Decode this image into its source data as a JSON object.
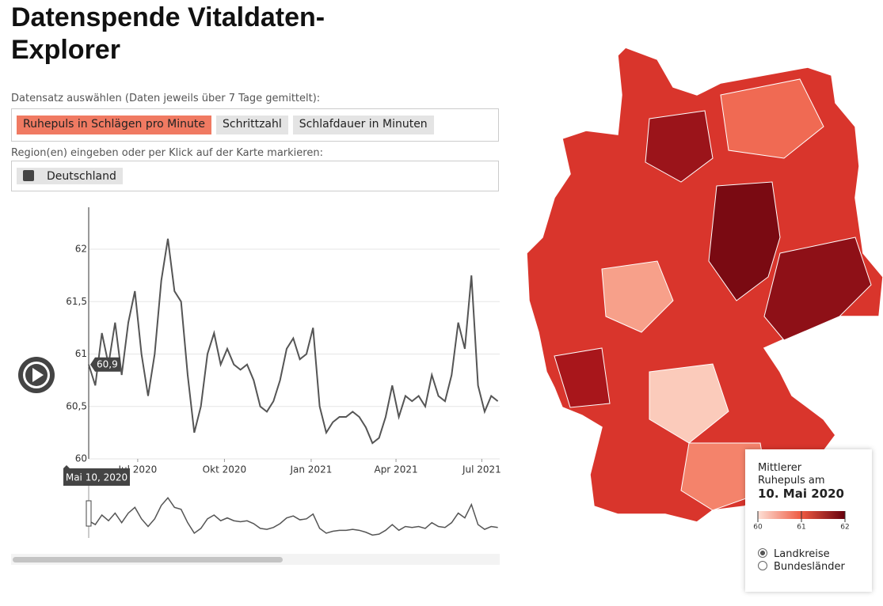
{
  "header": {
    "title": "Datenspende Vitaldaten-Explorer"
  },
  "dataset_picker": {
    "label": "Datensatz auswählen (Daten jeweils über 7 Tage gemittelt):",
    "options": [
      "Ruhepuls in Schlägen pro Minute",
      "Schrittzahl",
      "Schlafdauer in Minuten"
    ]
  },
  "region_picker": {
    "label": "Region(en) eingeben oder per Klick auf der Karte markieren:",
    "regions": [
      "Deutschland"
    ]
  },
  "chart_data": {
    "type": "line",
    "x": [
      "2020-05-10",
      "2020-05-17",
      "2020-05-24",
      "2020-05-31",
      "2020-06-07",
      "2020-06-14",
      "2020-06-21",
      "2020-06-28",
      "2020-07-05",
      "2020-07-12",
      "2020-07-19",
      "2020-07-26",
      "2020-08-02",
      "2020-08-09",
      "2020-08-16",
      "2020-08-23",
      "2020-08-30",
      "2020-09-06",
      "2020-09-13",
      "2020-09-20",
      "2020-09-27",
      "2020-10-04",
      "2020-10-11",
      "2020-10-18",
      "2020-10-25",
      "2020-11-01",
      "2020-11-08",
      "2020-11-15",
      "2020-11-22",
      "2020-11-29",
      "2020-12-06",
      "2020-12-13",
      "2020-12-20",
      "2020-12-27",
      "2021-01-03",
      "2021-01-10",
      "2021-01-17",
      "2021-01-24",
      "2021-01-31",
      "2021-02-07",
      "2021-02-14",
      "2021-02-21",
      "2021-02-28",
      "2021-03-07",
      "2021-03-14",
      "2021-03-21",
      "2021-03-28",
      "2021-04-04",
      "2021-04-11",
      "2021-04-18",
      "2021-04-25",
      "2021-05-02",
      "2021-05-09",
      "2021-05-16",
      "2021-05-23",
      "2021-05-30",
      "2021-06-06",
      "2021-06-13",
      "2021-06-20",
      "2021-06-27",
      "2021-07-04",
      "2021-07-11",
      "2021-07-18"
    ],
    "values": [
      60.9,
      60.7,
      61.2,
      60.9,
      61.3,
      60.8,
      61.3,
      61.6,
      61.0,
      60.6,
      61.0,
      61.7,
      62.1,
      61.6,
      61.5,
      60.8,
      60.25,
      60.5,
      61.0,
      61.2,
      60.9,
      61.05,
      60.9,
      60.85,
      60.9,
      60.75,
      60.5,
      60.45,
      60.55,
      60.75,
      61.05,
      61.15,
      60.95,
      61.0,
      61.25,
      60.5,
      60.25,
      60.35,
      60.4,
      60.4,
      60.45,
      60.4,
      60.3,
      60.15,
      60.2,
      60.4,
      60.7,
      60.4,
      60.6,
      60.55,
      60.6,
      60.5,
      60.8,
      60.6,
      60.55,
      60.8,
      61.3,
      61.05,
      61.75,
      60.7,
      60.45,
      60.6,
      60.55
    ],
    "color": "#555555",
    "xlim": [
      "2020-05-10",
      "2021-07-20"
    ],
    "xticks": [
      {
        "value": "2020-07-01",
        "label": "Jul 2020"
      },
      {
        "value": "2020-10-01",
        "label": "Okt 2020"
      },
      {
        "value": "2021-01-01",
        "label": "Jan 2021"
      },
      {
        "value": "2021-04-01",
        "label": "Apr 2021"
      },
      {
        "value": "2021-07-01",
        "label": "Jul 2021"
      }
    ],
    "ylim": [
      60,
      62.4
    ],
    "yticks": [
      60,
      {
        "value": 60.5,
        "label": "60,5"
      },
      61,
      {
        "value": 61.5,
        "label": "61,5"
      },
      62
    ],
    "grid": true,
    "hover": {
      "value_label": "60,9",
      "date_label": "Mai 10, 2020"
    }
  },
  "map_legend": {
    "title_lines": [
      "Mittlerer",
      "Ruhepuls am"
    ],
    "date": "10. Mai 2020",
    "scale_ticks": [
      60,
      61,
      62
    ],
    "scale_colors": [
      "#fde0d6",
      "#ee5a42",
      "#67000d"
    ],
    "options": [
      "Landkreise",
      "Bundesländer"
    ]
  }
}
